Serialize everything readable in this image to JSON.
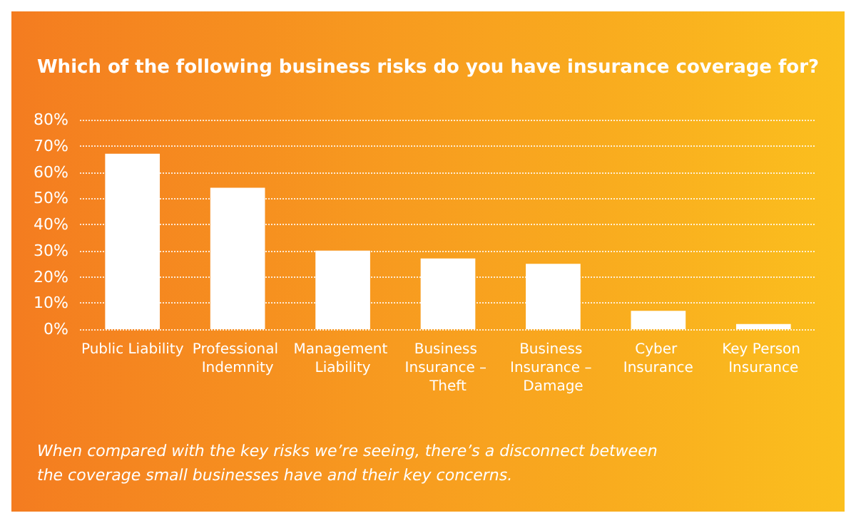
{
  "chart_data": {
    "type": "bar",
    "title": "Which of the following business risks do you have insurance coverage for?",
    "categories": [
      "Public Liability",
      "Professional Indemnity",
      "Management Liability",
      "Business Insurance – Theft",
      "Business Insurance – Damage",
      "Cyber Insurance",
      "Key Person Insurance"
    ],
    "values": [
      67,
      54,
      30,
      27,
      25,
      7,
      2
    ],
    "color": "#ffffff",
    "ylim": [
      0,
      80
    ],
    "yticks": [
      {
        "value": 0,
        "label": "0%"
      },
      {
        "value": 10,
        "label": "10%"
      },
      {
        "value": 20,
        "label": "20%"
      },
      {
        "value": 30,
        "label": "30%"
      },
      {
        "value": 40,
        "label": "40%"
      },
      {
        "value": 50,
        "label": "50%"
      },
      {
        "value": 60,
        "label": "60%"
      },
      {
        "value": 70,
        "label": "70%"
      },
      {
        "value": 80,
        "label": "80%"
      }
    ],
    "grid": "y",
    "annotations": [
      "When compared with the key risks we’re seeing, there’s a disconnect between the coverage small businesses have and their key concerns."
    ]
  }
}
